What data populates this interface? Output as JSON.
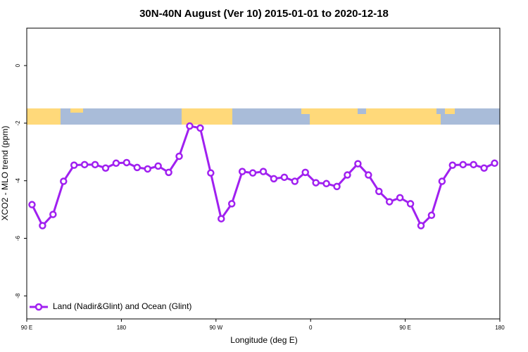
{
  "chart_data": {
    "type": "line",
    "title": "30N-40N August (Ver 10)   2015-01-01 to 2020-12-18",
    "x_label": "Longitude (deg E)",
    "y_label": "XCO2 - MLO trend (ppm)",
    "x": [
      95,
      105,
      115,
      125,
      135,
      145,
      155,
      165,
      175,
      185,
      195,
      205,
      215,
      225,
      235,
      245,
      255,
      265,
      275,
      285,
      295,
      305,
      315,
      325,
      335,
      345,
      355,
      365,
      375,
      385,
      395,
      405,
      415,
      425,
      435,
      445,
      455,
      465,
      475,
      485,
      495,
      505,
      515,
      525,
      535
    ],
    "series": [
      {
        "name": "Land (Nadir&Glint) and Ocean (Glint)",
        "color": "#a020f0",
        "values": [
          -4.83,
          -5.56,
          -5.17,
          -4.02,
          -3.46,
          -3.44,
          -3.44,
          -3.56,
          -3.39,
          -3.37,
          -3.54,
          -3.59,
          -3.49,
          -3.71,
          -3.15,
          -2.1,
          -2.17,
          -3.73,
          -5.32,
          -4.8,
          -3.68,
          -3.73,
          -3.68,
          -3.93,
          -3.88,
          -4.02,
          -3.71,
          -4.07,
          -4.1,
          -4.2,
          -3.8,
          -3.41,
          -3.8,
          -4.37,
          -4.73,
          -4.59,
          -4.8,
          -5.56,
          -5.2,
          -4.02,
          -3.46,
          -3.44,
          -3.44,
          -3.56,
          -3.39
        ]
      }
    ],
    "xlim": [
      90,
      540
    ],
    "xticks": [
      {
        "value": 90,
        "label": "90 E"
      },
      180,
      {
        "value": 270,
        "label": "90 W"
      },
      {
        "value": 360,
        "label": "0"
      },
      {
        "value": 450,
        "label": "90 E"
      },
      {
        "value": 540,
        "label": "180"
      }
    ],
    "ylim": [
      -8.8,
      1.3
    ],
    "yticks": [
      0,
      -2,
      -4,
      -6,
      -8
    ],
    "legend": "bottom-left"
  }
}
